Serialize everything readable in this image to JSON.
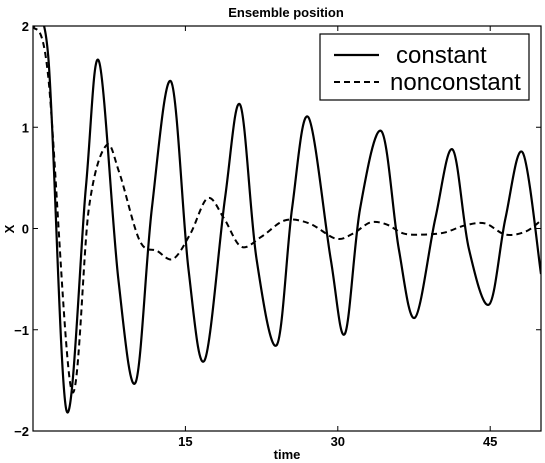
{
  "chart_data": {
    "type": "line",
    "title": "Ensemble position",
    "xlabel": "time",
    "ylabel": "X",
    "xlim": [
      0,
      50
    ],
    "ylim": [
      -2,
      2
    ],
    "x_ticks": [
      15,
      30,
      45
    ],
    "y_ticks": [
      -2,
      -1,
      0,
      1,
      2
    ],
    "x_tick_labels": [
      "15",
      "30",
      "45"
    ],
    "y_tick_labels": [
      "−2",
      "−1",
      "0",
      "1",
      "2"
    ],
    "grid": false,
    "legend_position": "top-right",
    "series": [
      {
        "name": "constant",
        "style": "solid",
        "color": "#000000",
        "x": [
          0,
          1.5,
          3.3,
          5.2,
          6.5,
          8.4,
          10.1,
          11.7,
          13.6,
          15.3,
          16.9,
          18.9,
          20.4,
          22.0,
          24.0,
          25.5,
          27.1,
          29.3,
          30.7,
          32.2,
          34.3,
          36.0,
          37.6,
          39.6,
          41.3,
          42.9,
          44.9,
          46.5,
          48.2,
          50.0
        ],
        "y": [
          2.0,
          1.7,
          -1.8,
          0.4,
          1.65,
          -0.5,
          -1.52,
          0.2,
          1.45,
          -0.4,
          -1.3,
          0.3,
          1.22,
          -0.3,
          -1.15,
          0.2,
          1.1,
          -0.3,
          -1.04,
          0.2,
          0.96,
          -0.2,
          -0.88,
          0.1,
          0.78,
          -0.2,
          -0.75,
          0.1,
          0.75,
          -0.45
        ]
      },
      {
        "name": "nonconstant",
        "style": "dashed",
        "color": "#000000",
        "x": [
          0,
          1.5,
          3.8,
          5.5,
          7.2,
          8.5,
          10.5,
          12.2,
          13.8,
          15.5,
          17.2,
          18.8,
          20.5,
          22.5,
          24.8,
          27.2,
          29.8,
          31.5,
          33.2,
          34.8,
          36.5,
          38.5,
          40.5,
          42.5,
          44.5,
          46.5,
          48.5,
          50.0
        ],
        "y": [
          2.0,
          1.5,
          -1.6,
          0.2,
          0.82,
          0.55,
          -0.12,
          -0.22,
          -0.3,
          -0.05,
          0.3,
          0.1,
          -0.18,
          -0.08,
          0.08,
          0.05,
          -0.1,
          -0.05,
          0.06,
          0.04,
          -0.05,
          -0.06,
          -0.04,
          0.03,
          0.05,
          -0.06,
          -0.03,
          0.08
        ]
      }
    ]
  }
}
